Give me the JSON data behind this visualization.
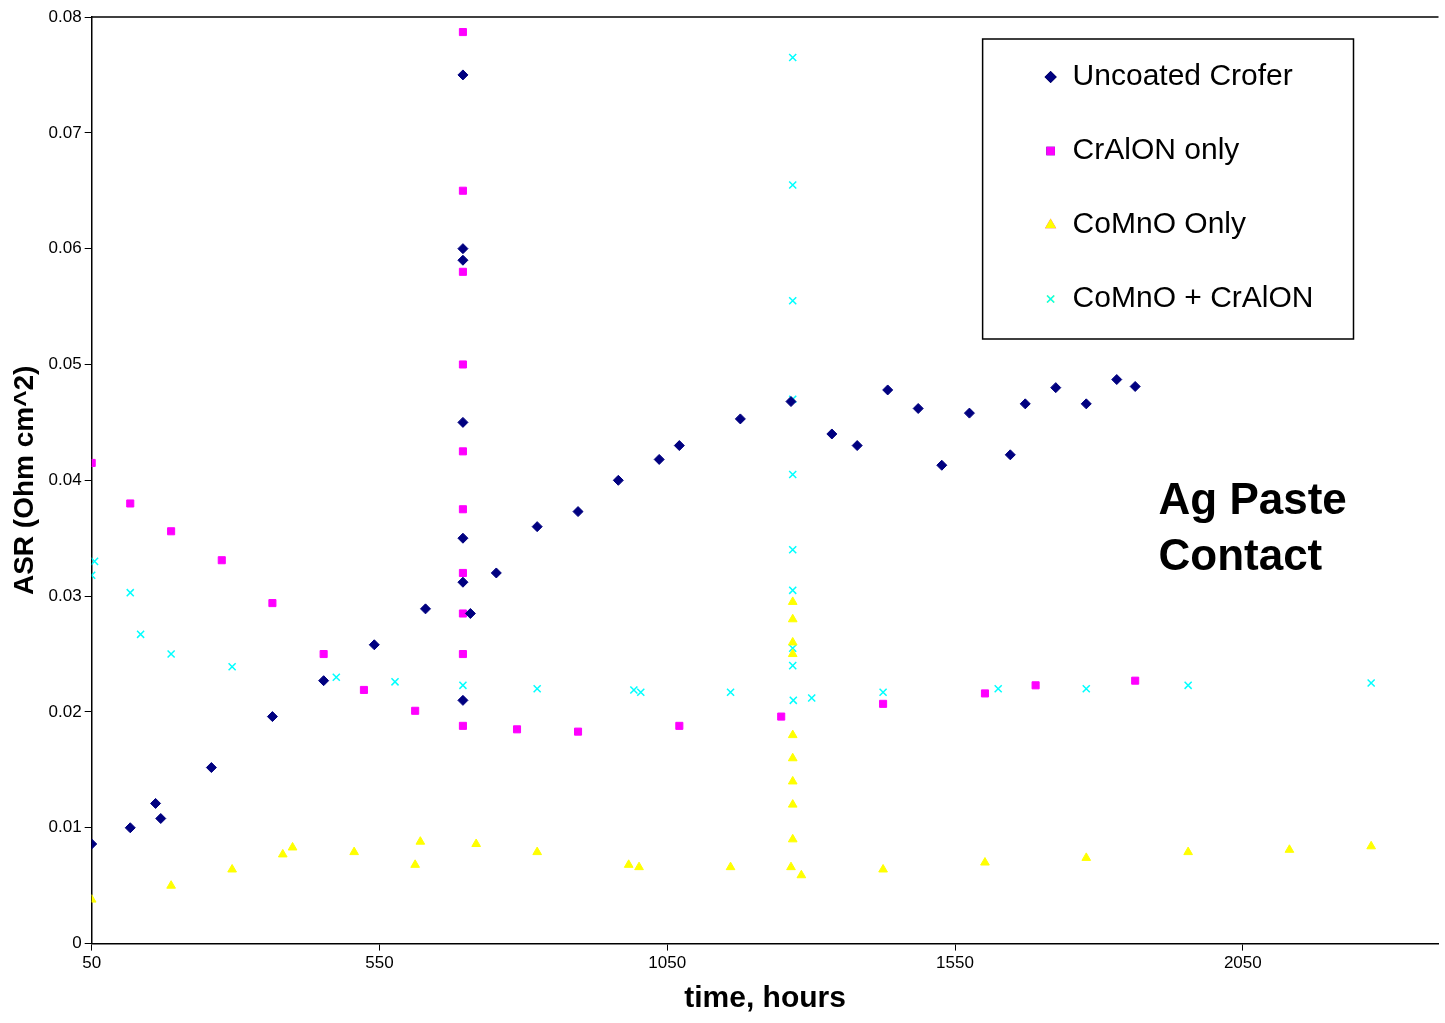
{
  "chart_data": {
    "type": "scatter",
    "xlabel": "time, hours",
    "ylabel": "ASR (Ohm cm^2)",
    "xlim": [
      50,
      2390
    ],
    "xticks": [
      50,
      550,
      1050,
      1550,
      2050
    ],
    "ylim": [
      0,
      0.08
    ],
    "yticks": [
      0,
      0.01,
      0.02,
      0.03,
      0.04,
      0.05,
      0.06,
      0.07,
      0.08
    ],
    "grid": false,
    "legend": "top right",
    "annotations": [
      "Ag Paste Contact"
    ],
    "series": [
      {
        "name": "Uncoated Crofer",
        "color": "#000080",
        "marker": "diamond",
        "x": [
          50,
          117,
          161,
          170,
          258,
          364,
          453,
          541,
          630,
          695,
          695,
          695,
          695,
          695,
          695,
          695,
          708,
          753,
          824,
          895,
          965,
          1036,
          1071,
          1177,
          1265,
          1336,
          1380,
          1433,
          1486,
          1527,
          1575,
          1646,
          1672,
          1725,
          1778,
          1831,
          1863
        ],
        "values": [
          0.0086,
          0.01,
          0.0121,
          0.0108,
          0.0152,
          0.0196,
          0.0227,
          0.0258,
          0.0289,
          0.0312,
          0.021,
          0.075,
          0.06,
          0.059,
          0.045,
          0.035,
          0.0285,
          0.032,
          0.036,
          0.0373,
          0.04,
          0.0418,
          0.043,
          0.0453,
          0.0468,
          0.044,
          0.043,
          0.0478,
          0.0462,
          0.0413,
          0.0458,
          0.0422,
          0.0466,
          0.048,
          0.0466,
          0.0487,
          0.0481
        ]
      },
      {
        "name": "CrAlON only",
        "color": "#ff00ff",
        "marker": "square",
        "x": [
          50,
          117,
          188,
          276,
          364,
          453,
          523,
          612,
          695,
          695,
          695,
          695,
          695,
          695,
          695,
          695,
          695,
          695,
          789,
          895,
          1071,
          1248,
          1425,
          1602,
          1690,
          1863
        ],
        "values": [
          0.0415,
          0.038,
          0.0356,
          0.0331,
          0.0294,
          0.025,
          0.0219,
          0.0201,
          0.0188,
          0.0787,
          0.065,
          0.058,
          0.05,
          0.0425,
          0.0375,
          0.032,
          0.0285,
          0.025,
          0.0185,
          0.0183,
          0.0188,
          0.0196,
          0.0207,
          0.0216,
          0.0223,
          0.0227
        ]
      },
      {
        "name": "CoMnO Only",
        "color": "#ffff00",
        "marker": "triangle",
        "x": [
          50,
          188,
          294,
          382,
          399,
          506,
          612,
          621,
          718,
          824,
          983,
          1001,
          1160,
          1265,
          1268,
          1268,
          1268,
          1268,
          1268,
          1268,
          1268,
          1268,
          1268,
          1283,
          1425,
          1602,
          1778,
          1955,
          2131,
          2273
        ],
        "values": [
          0.0038,
          0.005,
          0.0064,
          0.0077,
          0.0083,
          0.0079,
          0.0068,
          0.0088,
          0.0086,
          0.0079,
          0.0068,
          0.0066,
          0.0066,
          0.0066,
          0.0295,
          0.028,
          0.026,
          0.025,
          0.018,
          0.016,
          0.014,
          0.012,
          0.009,
          0.0059,
          0.0064,
          0.007,
          0.0074,
          0.0079,
          0.0081,
          0.0084
        ]
      },
      {
        "name": "CoMnO + CrAlON",
        "color": "#00ffff",
        "marker": "cross",
        "x": [
          50,
          55,
          117,
          135,
          188,
          294,
          475,
          577,
          695,
          824,
          992,
          1004,
          1160,
          1269,
          1268,
          1268,
          1268,
          1268,
          1268,
          1268,
          1268,
          1268,
          1268,
          1301,
          1425,
          1625,
          1778,
          1955,
          2273
        ],
        "values": [
          0.0318,
          0.033,
          0.0303,
          0.0267,
          0.025,
          0.0239,
          0.023,
          0.0226,
          0.0223,
          0.022,
          0.0219,
          0.0217,
          0.0217,
          0.021,
          0.0765,
          0.0655,
          0.0555,
          0.047,
          0.0405,
          0.034,
          0.0305,
          0.0255,
          0.024,
          0.0212,
          0.0217,
          0.022,
          0.022,
          0.0223,
          0.0225
        ]
      }
    ]
  }
}
